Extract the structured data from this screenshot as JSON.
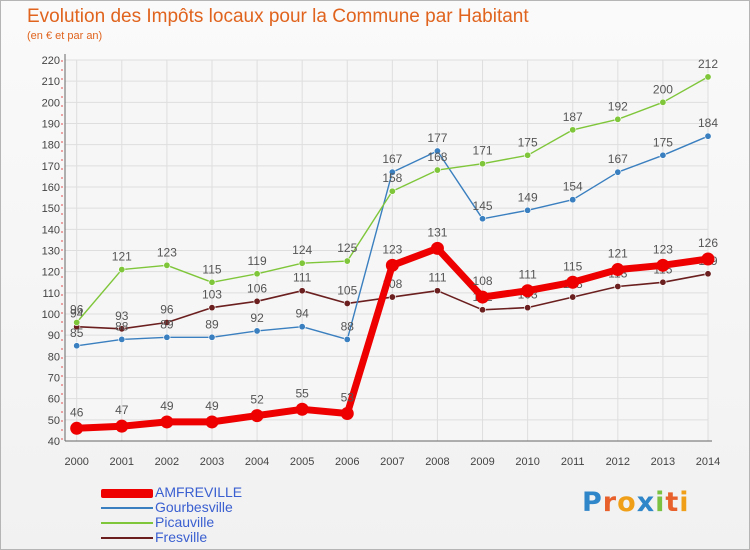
{
  "chart_data": {
    "type": "line",
    "title": "Evolution des Impôts locaux pour la Commune par Habitant",
    "subtitle": "(en € et par an)",
    "x": [
      "2000",
      "2001",
      "2002",
      "2003",
      "2004",
      "2005",
      "2006",
      "2007",
      "2008",
      "2009",
      "2010",
      "2011",
      "2012",
      "2013",
      "2014"
    ],
    "ylim": [
      40,
      220
    ],
    "ytick_step": 10,
    "grid": true,
    "legend_position": "bottom-left",
    "series": [
      {
        "name": "Fresville",
        "color": "#6b1f1f",
        "values": [
          94,
          93,
          96,
          103,
          106,
          111,
          105,
          108,
          111,
          102,
          103,
          108,
          113,
          115,
          119
        ]
      },
      {
        "name": "Gourbesville",
        "color": "#3a7fbf",
        "values": [
          85,
          88,
          89,
          89,
          92,
          94,
          88,
          167,
          177,
          145,
          149,
          154,
          167,
          175,
          184
        ]
      },
      {
        "name": "Picauville",
        "color": "#7fc63a",
        "values": [
          96,
          121,
          123,
          115,
          119,
          124,
          125,
          158,
          168,
          171,
          175,
          187,
          192,
          200,
          212
        ]
      },
      {
        "name": "AMFREVILLE",
        "color": "#ee0000",
        "values": [
          46,
          47,
          49,
          49,
          52,
          55,
          53,
          123,
          131,
          108,
          111,
          115,
          121,
          123,
          126
        ]
      }
    ],
    "legend_order": [
      "AMFREVILLE",
      "Gourbesville",
      "Picauville",
      "Fresville"
    ]
  },
  "logo": [
    "P",
    "r",
    "o",
    "x",
    "i",
    "t",
    "i"
  ]
}
